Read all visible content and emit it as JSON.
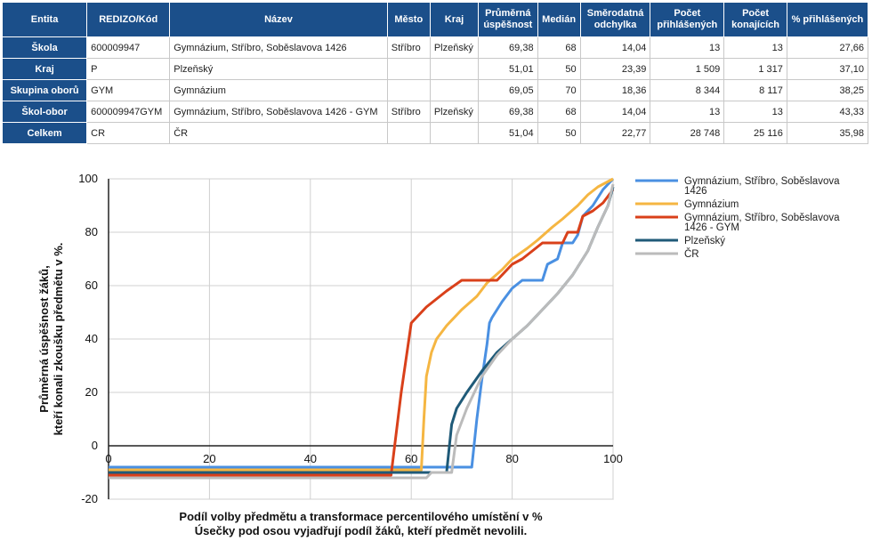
{
  "table": {
    "headers": [
      "Entita",
      "REDIZO/Kód",
      "Název",
      "Město",
      "Kraj",
      "Průměrná úspěšnost",
      "Medián",
      "Směrodatná odchylka",
      "Počet přihlášených",
      "Počet konajících",
      "% přihlášených"
    ],
    "rows": [
      [
        "Škola",
        "600009947",
        "Gymnázium, Stříbro, Soběslavova 1426",
        "Stříbro",
        "Plzeňský",
        "69,38",
        "68",
        "14,04",
        "13",
        "13",
        "27,66"
      ],
      [
        "Kraj",
        "P",
        "Plzeňský",
        "",
        "",
        "51,01",
        "50",
        "23,39",
        "1 509",
        "1 317",
        "37,10"
      ],
      [
        "Skupina oborů",
        "GYM",
        "Gymnázium",
        "",
        "",
        "69,05",
        "70",
        "18,36",
        "8 344",
        "8 117",
        "38,25"
      ],
      [
        "Škol-obor",
        "600009947GYM",
        "Gymnázium, Stříbro, Soběslavova 1426 - GYM",
        "Stříbro",
        "Plzeňský",
        "69,38",
        "68",
        "14,04",
        "13",
        "13",
        "43,33"
      ],
      [
        "Celkem",
        "CR",
        "ČR",
        "",
        "",
        "51,04",
        "50",
        "22,77",
        "28 748",
        "25 116",
        "35,98"
      ]
    ]
  },
  "chart_data": {
    "type": "line",
    "ylabel_lines": [
      "Průměrná úspěšnost žáků,",
      "kteří konali zkoušku předmětu v %."
    ],
    "xlabel_lines": [
      "Podíl volby předmětu a transformace percentilového umístění v %",
      "Úsečky pod osou vyjadřují podíl žáků, kteří předmět nevolili."
    ],
    "xlim": [
      0,
      100
    ],
    "ylim": [
      -20,
      100
    ],
    "xticks": [
      0,
      20,
      40,
      60,
      80,
      100
    ],
    "yticks": [
      -20,
      0,
      20,
      40,
      60,
      80,
      100
    ],
    "grid": true,
    "legend_position": "right",
    "series": [
      {
        "name": "Gymnázium, Stříbro, Soběslavova 1426",
        "legend_lines": [
          "Gymnázium, Stříbro, Soběslavova",
          "1426"
        ],
        "color": "#4a90e2",
        "points": [
          [
            0,
            -8
          ],
          [
            72,
            -8
          ],
          [
            73,
            10
          ],
          [
            74,
            25
          ],
          [
            75,
            38
          ],
          [
            75.5,
            46
          ],
          [
            76,
            48
          ],
          [
            78,
            54
          ],
          [
            80,
            59
          ],
          [
            82,
            62
          ],
          [
            85,
            62
          ],
          [
            86,
            62
          ],
          [
            87,
            68
          ],
          [
            89,
            70
          ],
          [
            90,
            76
          ],
          [
            92,
            76
          ],
          [
            93,
            79
          ],
          [
            94,
            86
          ],
          [
            95,
            88
          ],
          [
            96,
            90
          ],
          [
            98,
            96
          ],
          [
            100,
            100
          ]
        ]
      },
      {
        "name": "Gymnázium",
        "legend_lines": [
          "Gymnázium"
        ],
        "color": "#f5b642",
        "points": [
          [
            0,
            -9
          ],
          [
            62,
            -9
          ],
          [
            62.5,
            10
          ],
          [
            63,
            26
          ],
          [
            64,
            35
          ],
          [
            65,
            40
          ],
          [
            67,
            45
          ],
          [
            70,
            51
          ],
          [
            73,
            56
          ],
          [
            75,
            61
          ],
          [
            78,
            66
          ],
          [
            80,
            70
          ],
          [
            83,
            74
          ],
          [
            85,
            77
          ],
          [
            88,
            82
          ],
          [
            90,
            85
          ],
          [
            93,
            90
          ],
          [
            95,
            94
          ],
          [
            97,
            97
          ],
          [
            100,
            100
          ]
        ]
      },
      {
        "name": "Gymnázium, Stříbro, Soběslavova 1426 - GYM",
        "legend_lines": [
          "Gymnázium, Stříbro, Soběslavova",
          "1426 - GYM"
        ],
        "color": "#d9401a",
        "points": [
          [
            0,
            -11
          ],
          [
            56,
            -11
          ],
          [
            58,
            20
          ],
          [
            60,
            46
          ],
          [
            63,
            52
          ],
          [
            67,
            58
          ],
          [
            70,
            62
          ],
          [
            77,
            62
          ],
          [
            80,
            68
          ],
          [
            82,
            70
          ],
          [
            84,
            73
          ],
          [
            86,
            76
          ],
          [
            90,
            76
          ],
          [
            91,
            80
          ],
          [
            93,
            80
          ],
          [
            94,
            86
          ],
          [
            96,
            88
          ],
          [
            98,
            91
          ],
          [
            100,
            96
          ]
        ]
      },
      {
        "name": "Plzeňský",
        "legend_lines": [
          "Plzeňský"
        ],
        "color": "#1f5a78",
        "points": [
          [
            0,
            -10
          ],
          [
            67,
            -10
          ],
          [
            68,
            8
          ],
          [
            69,
            14
          ],
          [
            71,
            20
          ],
          [
            74,
            28
          ],
          [
            77,
            35
          ],
          [
            80,
            40
          ],
          [
            83,
            45
          ],
          [
            86,
            51
          ],
          [
            89,
            57
          ],
          [
            92,
            64
          ],
          [
            95,
            73
          ],
          [
            97,
            82
          ],
          [
            99,
            90
          ],
          [
            100,
            97
          ]
        ]
      },
      {
        "name": "ČR",
        "legend_lines": [
          "ČR"
        ],
        "color": "#bbbbbb",
        "points": [
          [
            0,
            -12
          ],
          [
            63,
            -12
          ],
          [
            64,
            -10
          ],
          [
            68,
            -10
          ],
          [
            69,
            4
          ],
          [
            71,
            14
          ],
          [
            74,
            26
          ],
          [
            77,
            34
          ],
          [
            80,
            40
          ],
          [
            83,
            45
          ],
          [
            86,
            51
          ],
          [
            89,
            57
          ],
          [
            92,
            64
          ],
          [
            95,
            73
          ],
          [
            97,
            82
          ],
          [
            99,
            90
          ],
          [
            100,
            98
          ]
        ]
      }
    ]
  }
}
